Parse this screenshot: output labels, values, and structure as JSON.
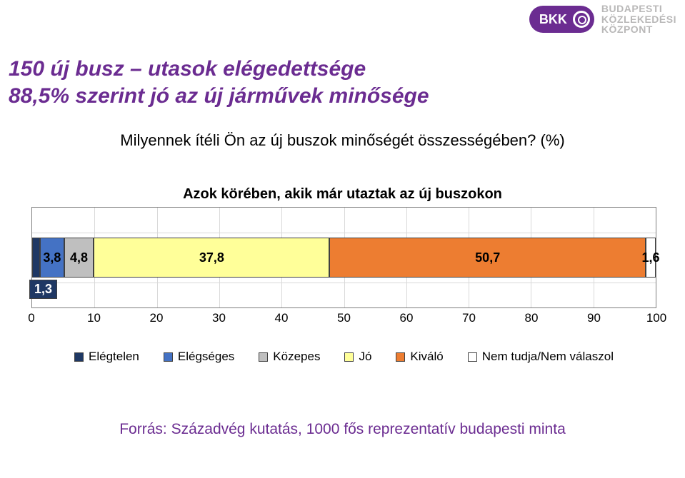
{
  "logo": {
    "abbr": "BKK",
    "line1": "BUDAPESTI",
    "line2": "KÖZLEKEDÉSI",
    "line3": "KÖZPONT",
    "brand_color": "#6b2c91",
    "text_color": "#b9b8b8"
  },
  "title": {
    "text": "150 új busz – utasok elégedettsége\n88,5% szerint jó az új járművek minősége",
    "color": "#6b2c91",
    "fontsize": 30
  },
  "question": {
    "text": "Milyennek ítéli Ön az új buszok minőségét összességében? (%)",
    "color": "#000000",
    "fontsize": 22
  },
  "subnote": {
    "text": "Azok körében, akik már utaztak az új buszokon",
    "color": "#000000",
    "fontsize": 20,
    "weight": "bold"
  },
  "chart": {
    "type": "stacked-bar-horizontal",
    "xlim": [
      0,
      100
    ],
    "xtick_step": 10,
    "xticks": [
      "0",
      "10",
      "20",
      "30",
      "40",
      "50",
      "60",
      "70",
      "80",
      "90",
      "100"
    ],
    "grid_color": "#d9d9d9",
    "border_color": "#7f7f7f",
    "background": "#ffffff",
    "bar_border": "#404040",
    "segments": [
      {
        "name": "Elégtelen",
        "value": 1.3,
        "label": "1,3",
        "color": "#1f3864",
        "text_color": "#ffffff",
        "label_outside": true
      },
      {
        "name": "Elégséges",
        "value": 3.8,
        "label": "3,8",
        "color": "#4472c4",
        "text_color": "#000000"
      },
      {
        "name": "Közepes",
        "value": 4.8,
        "label": "4,8",
        "color": "#bfbfbf",
        "text_color": "#000000"
      },
      {
        "name": "Jó",
        "value": 37.8,
        "label": "37,8",
        "color": "#ffff99",
        "text_color": "#000000"
      },
      {
        "name": "Kiváló",
        "value": 50.7,
        "label": "50,7",
        "color": "#ed7d31",
        "text_color": "#000000"
      },
      {
        "name": "Nem tudja/Nem válaszol",
        "value": 1.6,
        "label": "1,6",
        "color": "#ffffff",
        "text_color": "#000000"
      }
    ],
    "legend": [
      {
        "name": "Elégtelen",
        "color": "#1f3864"
      },
      {
        "name": "Elégséges",
        "color": "#4472c4"
      },
      {
        "name": "Közepes",
        "color": "#bfbfbf"
      },
      {
        "name": "Jó",
        "color": "#ffff99"
      },
      {
        "name": "Kiváló",
        "color": "#ed7d31"
      },
      {
        "name": "Nem tudja/Nem válaszol",
        "color": "#ffffff"
      }
    ]
  },
  "source": {
    "text": "Forrás: Századvég kutatás, 1000 fős reprezentatív budapesti minta",
    "color": "#6b2c91",
    "fontsize": 21
  }
}
